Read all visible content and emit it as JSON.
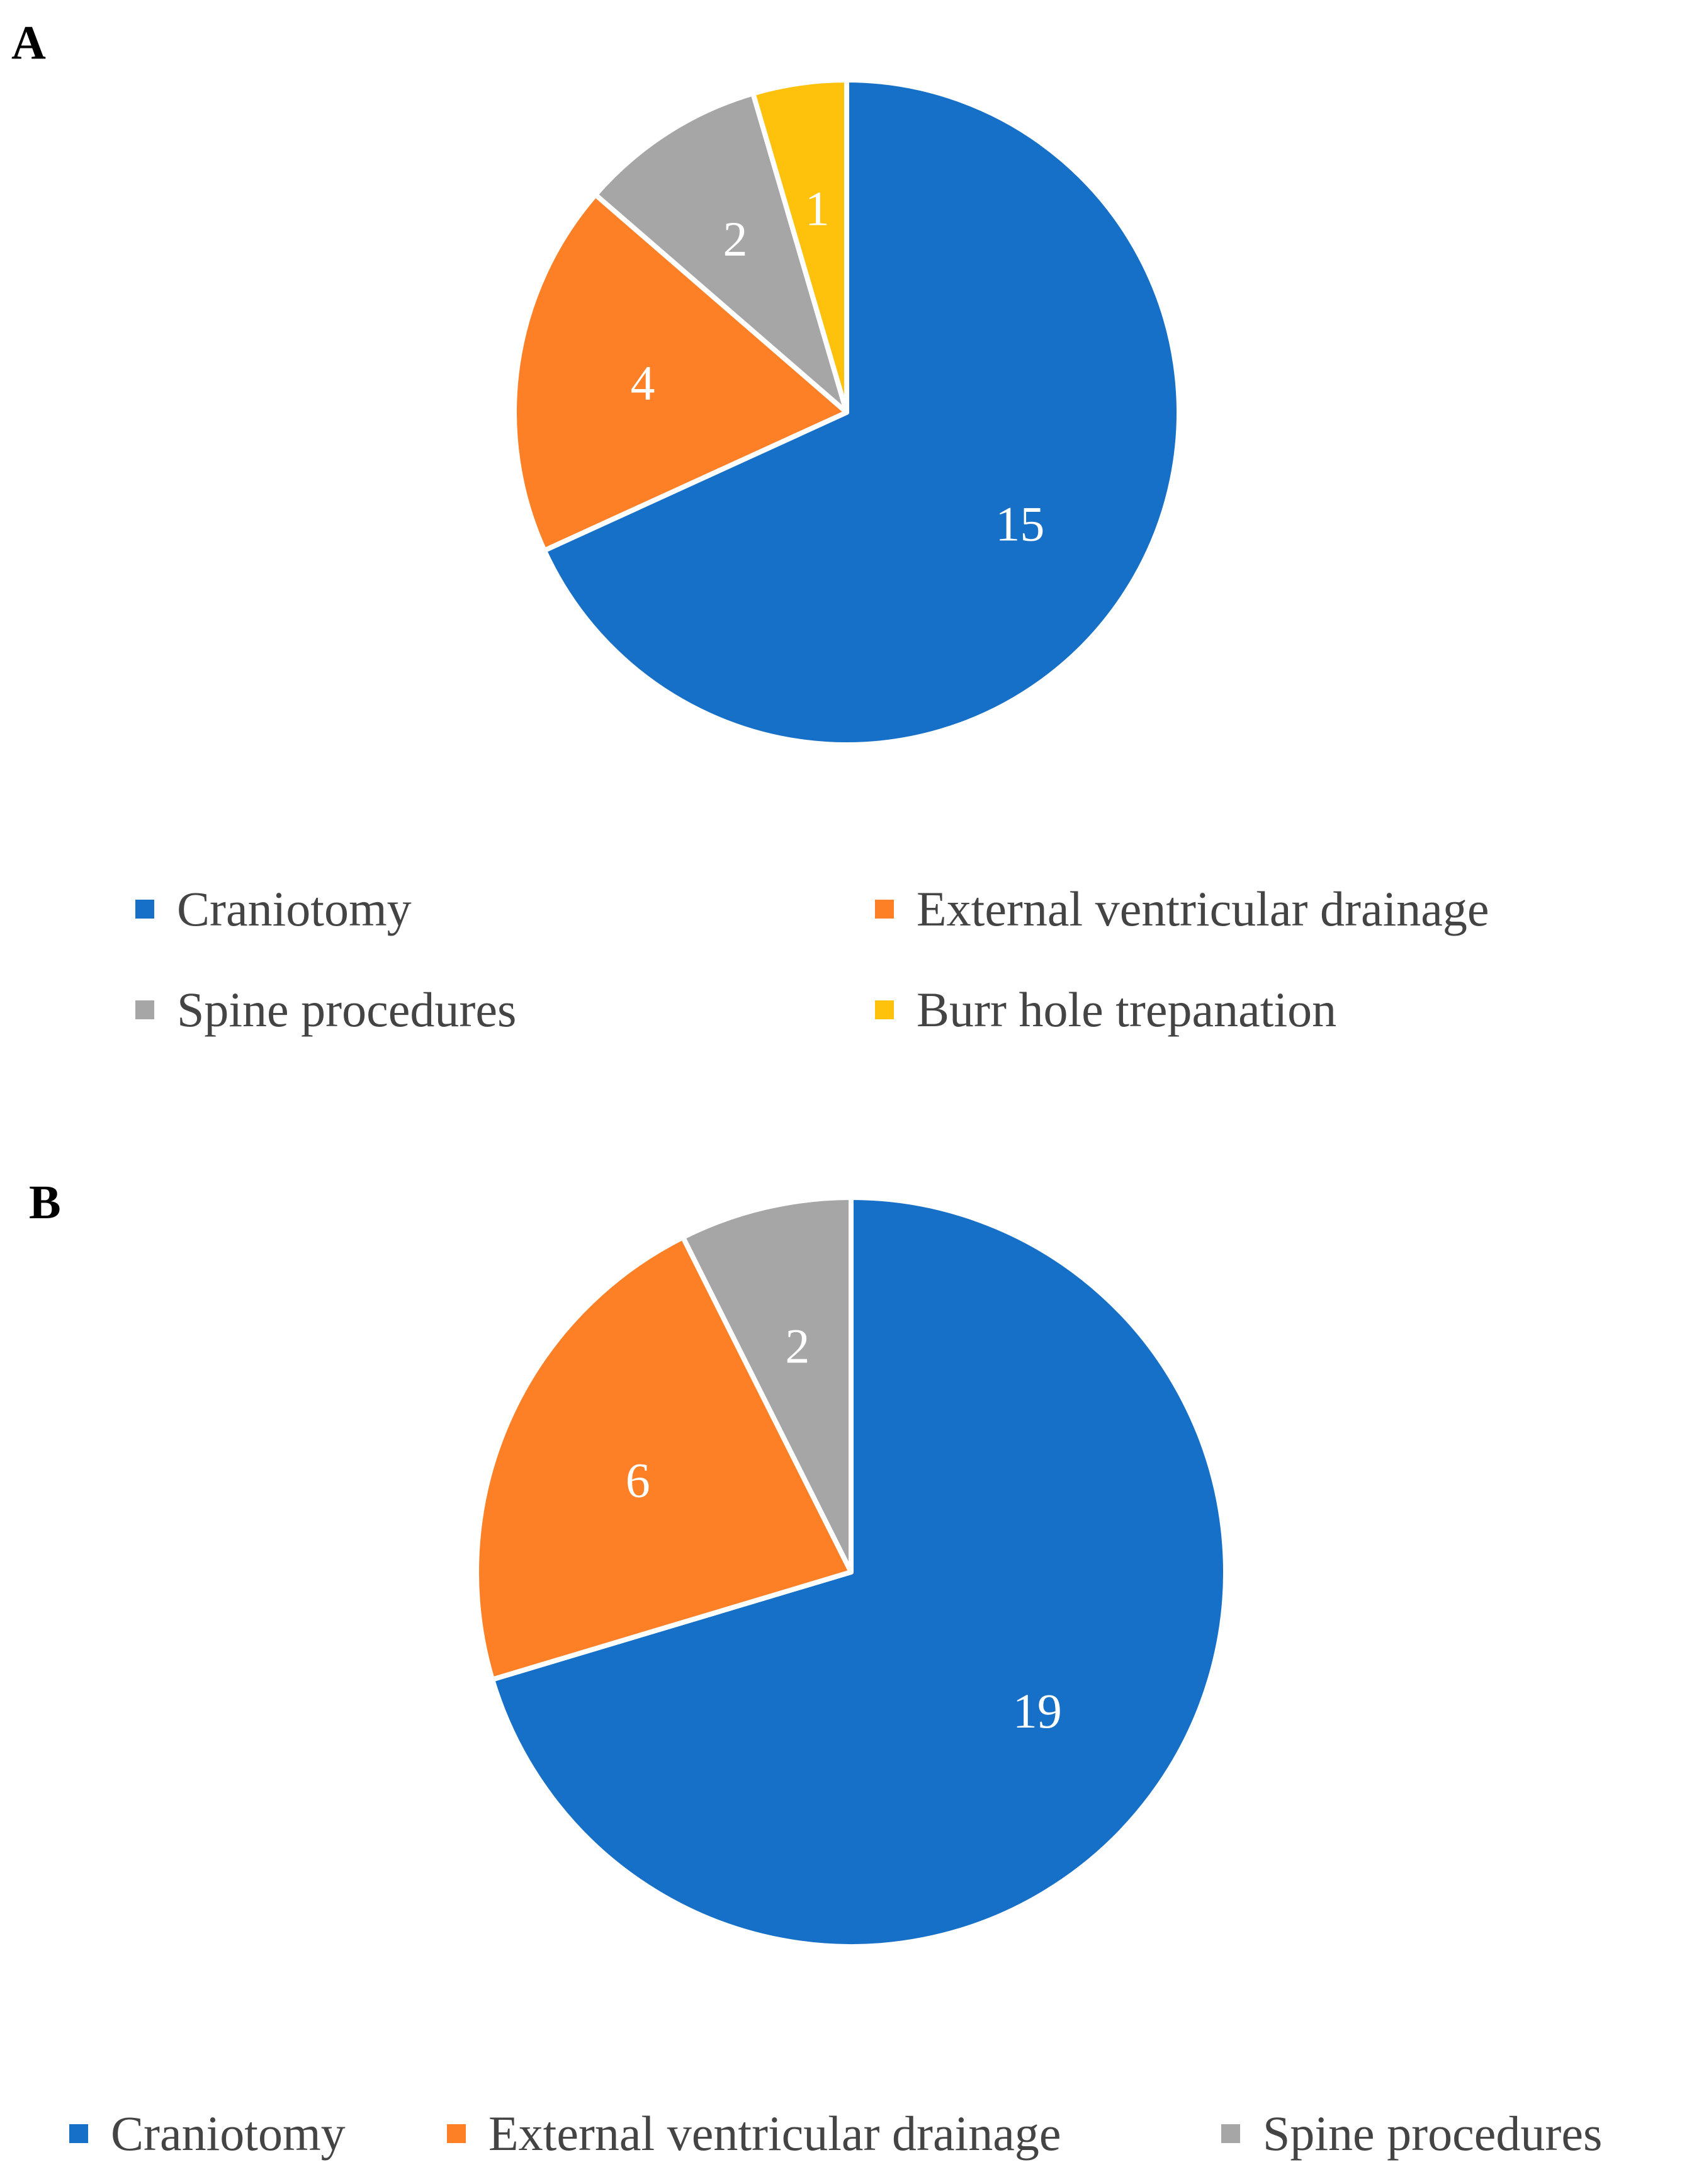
{
  "chart_data": [
    {
      "type": "pie",
      "panel": "A",
      "categories": [
        "Craniotomy",
        "External ventricular drainage",
        "Spine procedures",
        "Burr hole trepanation"
      ],
      "values": [
        15,
        4,
        2,
        1
      ],
      "colors": [
        "#1770C8",
        "#FD7F26",
        "#A6A6A6",
        "#FEC20D"
      ],
      "data_labels": [
        "15",
        "4",
        "2",
        "1"
      ],
      "legend_position": "bottom",
      "start": "12 o'clock",
      "direction": "clockwise"
    },
    {
      "type": "pie",
      "panel": "B",
      "categories": [
        "Craniotomy",
        "External ventricular drainage",
        "Spine procedures"
      ],
      "values": [
        19,
        6,
        2
      ],
      "colors": [
        "#1770C8",
        "#FD7F26",
        "#A6A6A6"
      ],
      "data_labels": [
        "19",
        "6",
        "2"
      ],
      "legend_position": "bottom",
      "start": "12 o'clock",
      "direction": "clockwise"
    }
  ],
  "panels": {
    "a_label": "A",
    "b_label": "B"
  },
  "legend_a": [
    "Craniotomy",
    "External ventricular drainage",
    "Spine procedures",
    "Burr hole trepanation"
  ],
  "legend_b": [
    "Craniotomy",
    "External ventricular drainage",
    "Spine procedures"
  ]
}
